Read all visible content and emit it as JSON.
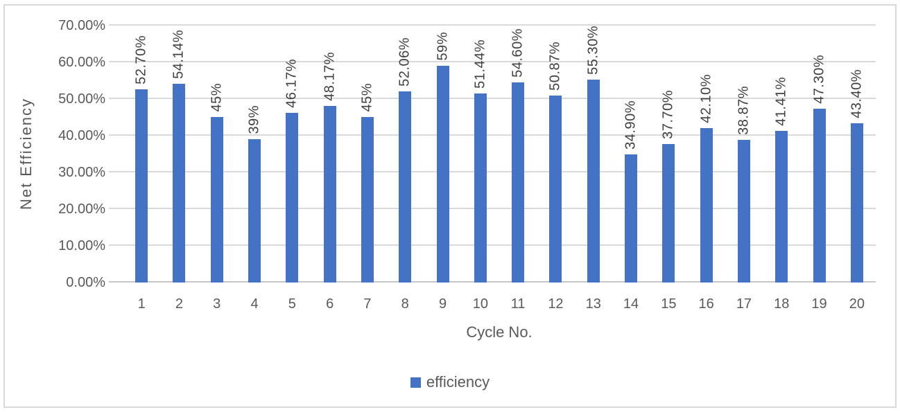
{
  "chart_data": {
    "type": "bar",
    "title": "",
    "xlabel": "Cycle No.",
    "ylabel": "Net Efficiency",
    "categories": [
      "1",
      "2",
      "3",
      "4",
      "5",
      "6",
      "7",
      "8",
      "9",
      "10",
      "11",
      "12",
      "13",
      "14",
      "15",
      "16",
      "17",
      "18",
      "19",
      "20"
    ],
    "series": [
      {
        "name": "efficiency",
        "color": "#4472C4",
        "values": [
          52.7,
          54.14,
          45,
          39,
          46.17,
          48.17,
          45,
          52.06,
          59,
          51.44,
          54.6,
          50.87,
          55.3,
          34.9,
          37.7,
          42.1,
          38.87,
          41.41,
          47.3,
          43.4
        ]
      }
    ],
    "data_labels": [
      "52.70%",
      "54.14%",
      "45%",
      "39%",
      "46.17%",
      "48.17%",
      "45%",
      "52.06%",
      "59%",
      "51.44%",
      "54.60%",
      "50.87%",
      "55.30%",
      "34.90%",
      "37.70%",
      "42.10%",
      "38.87%",
      "41.41%",
      "47.30%",
      "43.40%"
    ],
    "yticks": [
      {
        "v": 0,
        "label": "0.00%"
      },
      {
        "v": 10,
        "label": "10.00%"
      },
      {
        "v": 20,
        "label": "20.00%"
      },
      {
        "v": 30,
        "label": "30.00%"
      },
      {
        "v": 40,
        "label": "40.00%"
      },
      {
        "v": 50,
        "label": "50.00%"
      },
      {
        "v": 60,
        "label": "60.00%"
      },
      {
        "v": 70,
        "label": "70.00%"
      }
    ],
    "ylim": [
      0,
      70
    ],
    "grid": true,
    "legend_position": "bottom"
  },
  "colors": {
    "bar": "#4472C4",
    "gridline": "#D9D9D9",
    "axis_line": "#C6C6C6",
    "text": "#595959",
    "data_label": "#404040",
    "frame_border": "#D9D9D9",
    "background": "#FFFFFF"
  }
}
